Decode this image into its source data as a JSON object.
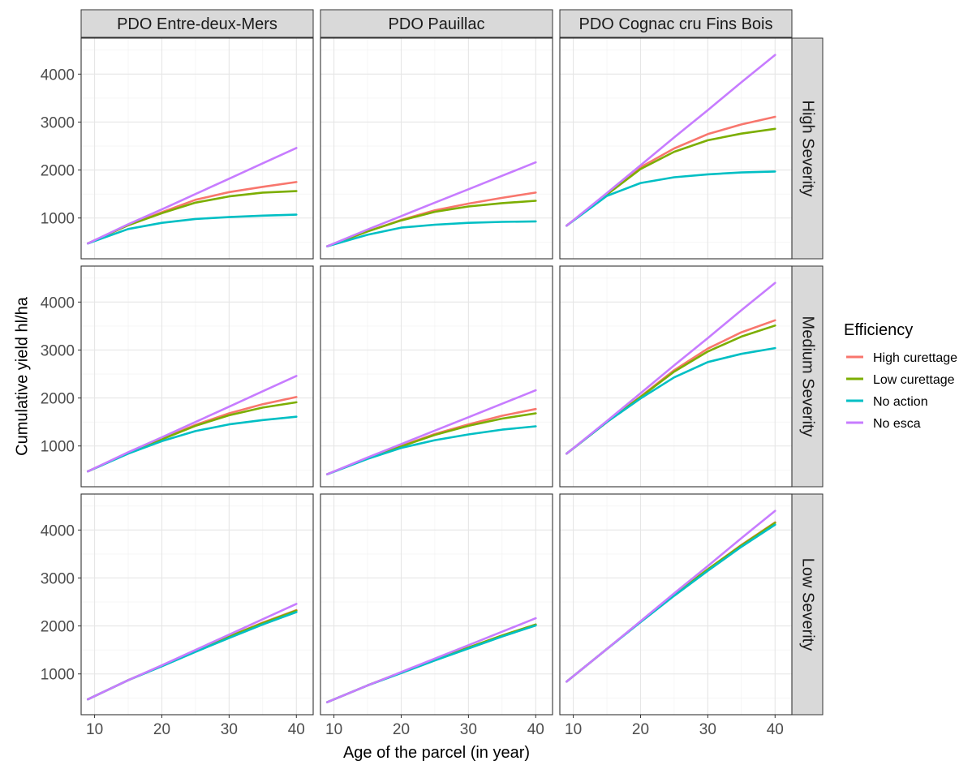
{
  "chart_data": {
    "type": "line",
    "xlabel": "Age of the parcel (in year)",
    "ylabel": "Cumulative yield  hl/ha",
    "xlim": [
      8,
      42.5
    ],
    "ylim": [
      150,
      4750
    ],
    "xticks": [
      10,
      20,
      30,
      40
    ],
    "yticks": [
      1000,
      2000,
      3000,
      4000
    ],
    "columns": [
      "PDO Entre-deux-Mers",
      "PDO Pauillac",
      "PDO Cognac cru Fins Bois"
    ],
    "rows": [
      "High Severity",
      "Medium Severity",
      "Low Severity"
    ],
    "legend": {
      "title": "Efficiency",
      "position": "right",
      "entries": [
        {
          "name": "High curettage",
          "color": "#F8766D"
        },
        {
          "name": "Low curettage",
          "color": "#7CAE00"
        },
        {
          "name": "No action",
          "color": "#00BFC4"
        },
        {
          "name": "No esca",
          "color": "#C77CFF"
        }
      ]
    },
    "x": [
      9,
      15,
      20,
      25,
      30,
      35,
      40
    ],
    "panels": [
      {
        "column": "PDO Entre-deux-Mers",
        "row": "High Severity",
        "series": [
          {
            "name": "High curettage",
            "values": [
              470,
              850,
              1120,
              1380,
              1540,
              1650,
              1750
            ]
          },
          {
            "name": "Low curettage",
            "values": [
              470,
              850,
              1100,
              1320,
              1450,
              1530,
              1560
            ]
          },
          {
            "name": "No action",
            "values": [
              470,
              770,
              900,
              980,
              1020,
              1050,
              1070
            ]
          },
          {
            "name": "No esca",
            "values": [
              470,
              870,
              1180,
              1500,
              1820,
              2140,
              2460
            ]
          }
        ]
      },
      {
        "column": "PDO Pauillac",
        "row": "High Severity",
        "series": [
          {
            "name": "High curettage",
            "values": [
              410,
              720,
              960,
              1160,
              1300,
              1420,
              1530
            ]
          },
          {
            "name": "Low curettage",
            "values": [
              410,
              720,
              950,
              1130,
              1240,
              1310,
              1360
            ]
          },
          {
            "name": "No action",
            "values": [
              410,
              650,
              800,
              860,
              900,
              920,
              930
            ]
          },
          {
            "name": "No esca",
            "values": [
              410,
              760,
              1040,
              1320,
              1600,
              1880,
              2160
            ]
          }
        ]
      },
      {
        "column": "PDO Cognac cru Fins Bois",
        "row": "High Severity",
        "series": [
          {
            "name": "High curettage",
            "values": [
              840,
              1500,
              2060,
              2450,
              2750,
              2950,
              3110
            ]
          },
          {
            "name": "Low curettage",
            "values": [
              840,
              1490,
              2020,
              2380,
              2620,
              2760,
              2860
            ]
          },
          {
            "name": "No action",
            "values": [
              840,
              1460,
              1730,
              1850,
              1910,
              1950,
              1970
            ]
          },
          {
            "name": "No esca",
            "values": [
              840,
              1520,
              2100,
              2680,
              3250,
              3830,
              4400
            ]
          }
        ]
      },
      {
        "column": "PDO Entre-deux-Mers",
        "row": "Medium Severity",
        "series": [
          {
            "name": "High curettage",
            "values": [
              470,
              850,
              1150,
              1440,
              1680,
              1870,
              2020
            ]
          },
          {
            "name": "Low curettage",
            "values": [
              470,
              850,
              1140,
              1420,
              1640,
              1800,
              1910
            ]
          },
          {
            "name": "No action",
            "values": [
              470,
              840,
              1100,
              1310,
              1450,
              1540,
              1610
            ]
          },
          {
            "name": "No esca",
            "values": [
              470,
              870,
              1180,
              1500,
              1820,
              2140,
              2460
            ]
          }
        ]
      },
      {
        "column": "PDO Pauillac",
        "row": "Medium Severity",
        "series": [
          {
            "name": "High curettage",
            "values": [
              410,
              740,
              1000,
              1250,
              1450,
              1630,
              1770
            ]
          },
          {
            "name": "Low curettage",
            "values": [
              410,
              740,
              990,
              1230,
              1420,
              1570,
              1680
            ]
          },
          {
            "name": "No action",
            "values": [
              410,
              730,
              960,
              1120,
              1240,
              1340,
              1410
            ]
          },
          {
            "name": "No esca",
            "values": [
              410,
              760,
              1040,
              1320,
              1600,
              1880,
              2160
            ]
          }
        ]
      },
      {
        "column": "PDO Cognac cru Fins Bois",
        "row": "Medium Severity",
        "series": [
          {
            "name": "High curettage",
            "values": [
              840,
              1500,
              2030,
              2580,
              3030,
              3370,
              3620
            ]
          },
          {
            "name": "Low curettage",
            "values": [
              840,
              1500,
              2020,
              2550,
              2970,
              3280,
              3510
            ]
          },
          {
            "name": "No action",
            "values": [
              840,
              1500,
              1990,
              2430,
              2750,
              2920,
              3040
            ]
          },
          {
            "name": "No esca",
            "values": [
              840,
              1520,
              2100,
              2680,
              3250,
              3830,
              4400
            ]
          }
        ]
      },
      {
        "column": "PDO Entre-deux-Mers",
        "row": "Low Severity",
        "series": [
          {
            "name": "High curettage",
            "values": [
              470,
              870,
              1170,
              1480,
              1780,
              2070,
              2330
            ]
          },
          {
            "name": "Low curettage",
            "values": [
              470,
              870,
              1170,
              1480,
              1780,
              2060,
              2320
            ]
          },
          {
            "name": "No action",
            "values": [
              470,
              870,
              1160,
              1460,
              1750,
              2030,
              2290
            ]
          },
          {
            "name": "No esca",
            "values": [
              470,
              870,
              1180,
              1500,
              1820,
              2140,
              2460
            ]
          }
        ]
      },
      {
        "column": "PDO Pauillac",
        "row": "Low Severity",
        "series": [
          {
            "name": "High curettage",
            "values": [
              410,
              760,
              1030,
              1290,
              1550,
              1800,
              2030
            ]
          },
          {
            "name": "Low curettage",
            "values": [
              410,
              760,
              1030,
              1290,
              1550,
              1800,
              2030
            ]
          },
          {
            "name": "No action",
            "values": [
              410,
              760,
              1020,
              1280,
              1530,
              1780,
              2010
            ]
          },
          {
            "name": "No esca",
            "values": [
              410,
              760,
              1040,
              1320,
              1600,
              1880,
              2160
            ]
          }
        ]
      },
      {
        "column": "PDO Cognac cru Fins Bois",
        "row": "Low Severity",
        "series": [
          {
            "name": "High curettage",
            "values": [
              840,
              1520,
              2090,
              2650,
              3180,
              3690,
              4160
            ]
          },
          {
            "name": "Low curettage",
            "values": [
              840,
              1520,
              2090,
              2650,
              3180,
              3680,
              4150
            ]
          },
          {
            "name": "No action",
            "values": [
              840,
              1520,
              2080,
              2630,
              3150,
              3650,
              4110
            ]
          },
          {
            "name": "No esca",
            "values": [
              840,
              1520,
              2100,
              2680,
              3250,
              3830,
              4400
            ]
          }
        ]
      }
    ]
  }
}
